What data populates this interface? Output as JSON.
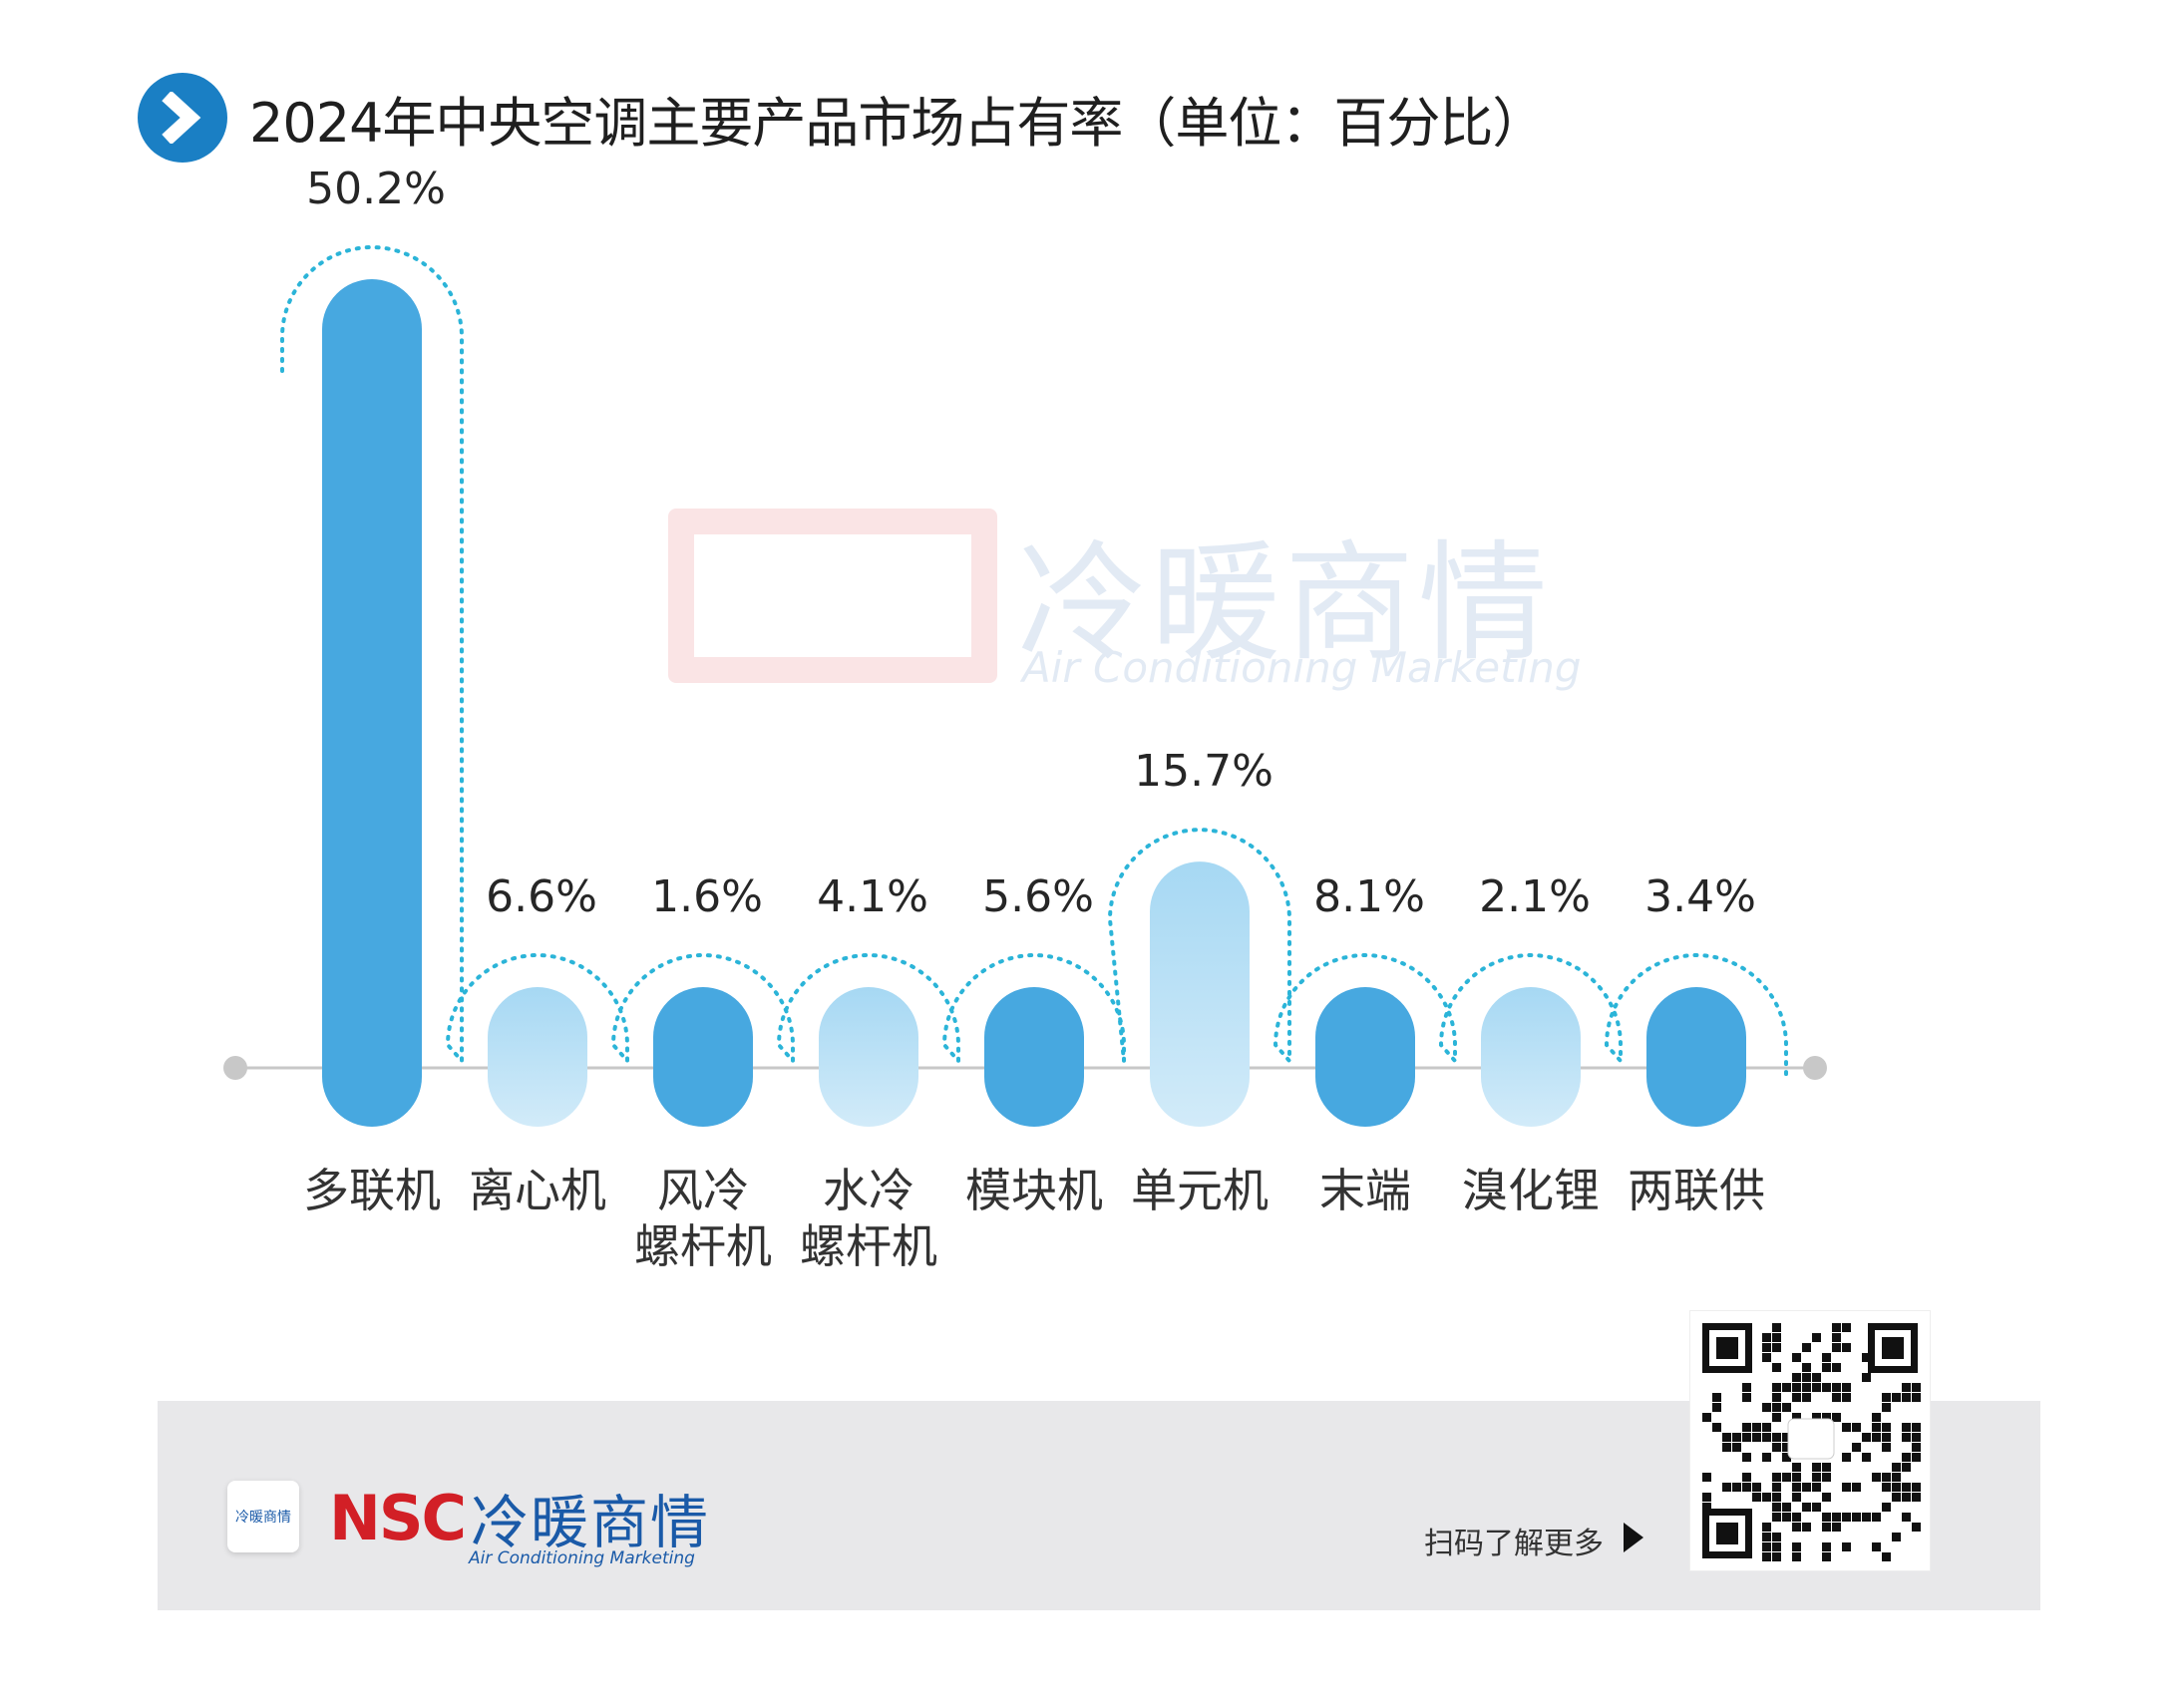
{
  "title": "2024年中央空调主要产品市场占有率（单位：百分比）",
  "watermark": {
    "cn": "冷暖商情",
    "en": "Air Conditioning Marketing"
  },
  "footer": {
    "logo_cn": "冷暖商情",
    "logo_nsc": "NSC",
    "logo_en": "Air Conditioning Marketing",
    "icon_text": "冷暖商情",
    "scan_text": "扫码了解更多"
  },
  "colors": {
    "dark": "#47a8e0",
    "light_top": "#9fd4f2",
    "light_bottom": "#cbe8f8",
    "dot": "#2bb4d8",
    "axis": "#c8c8c8",
    "badge": "#1a7fc4"
  },
  "chart_data": {
    "type": "bar",
    "title": "2024年中央空调主要产品市场占有率（单位：百分比）",
    "categories": [
      "多联机",
      "离心机",
      "风冷\n螺杆机",
      "水冷\n螺杆机",
      "模块机",
      "单元机",
      "末端",
      "溴化锂",
      "两联供"
    ],
    "values": [
      50.2,
      6.6,
      1.6,
      4.1,
      5.6,
      15.7,
      8.1,
      2.1,
      3.4
    ],
    "labels": [
      "50.2%",
      "6.6%",
      "1.6%",
      "4.1%",
      "5.6%",
      "15.7%",
      "8.1%",
      "2.1%",
      "3.4%"
    ],
    "styles": [
      "dark",
      "light",
      "dark",
      "light",
      "dark",
      "light",
      "dark",
      "light",
      "dark"
    ],
    "ylim": [
      0,
      50.2
    ],
    "grid": false,
    "legend": "none"
  }
}
